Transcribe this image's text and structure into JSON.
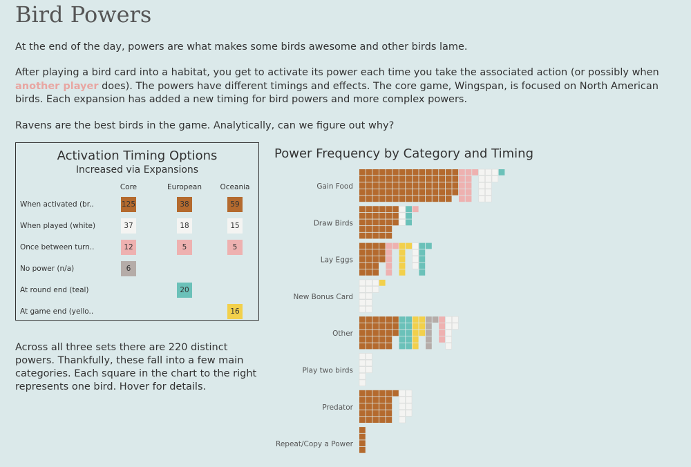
{
  "title": "Bird Powers",
  "intro": {
    "p1": "At the end of the day, powers are what makes some birds awesome and other birds lame.",
    "p2_before": "After playing a bird card into a habitat, you get to activate its power each time you take the associated action (or possibly when ",
    "p2_highlight": "another player",
    "p2_after": " does). The powers have different timings and effects. The core game, Wingspan, is focused on North American birds. Each expansion has added a new timing for bird powers and more complex powers.",
    "p3": "Ravens are the best birds in the game. Analytically, can we figure out why?"
  },
  "timing_table": {
    "title": "Activation Timing Options",
    "subtitle": "Increased via Expansions",
    "columns": [
      "Core",
      "European",
      "Oceania"
    ],
    "rows": [
      {
        "label": "When activated (br..",
        "color": "#b46a2e",
        "values": [
          "125",
          "38",
          "59"
        ]
      },
      {
        "label": "When played (white)",
        "color": "#f4f4f2",
        "values": [
          "37",
          "18",
          "15"
        ]
      },
      {
        "label": "Once between turn..",
        "color": "#eeb1b0",
        "values": [
          "12",
          "5",
          "5"
        ]
      },
      {
        "label": "No power (n/a)",
        "color": "#b5aca8",
        "values": [
          "6",
          "",
          ""
        ]
      },
      {
        "label": "At round end (teal)",
        "color": "#6bc1b9",
        "values": [
          "",
          "20",
          ""
        ]
      },
      {
        "label": "At game end (yello..",
        "color": "#f2d04b",
        "values": [
          "",
          "",
          "16"
        ]
      }
    ]
  },
  "summary": "Across all three sets there are 220 distinct powers. Thankfully, these fall into a few main categories. Each square in the chart to the right represents one bird. Hover for details.",
  "chart_data": {
    "type": "treemap-bar",
    "title": "Power Frequency by Category and Timing",
    "unit": "one square = one bird",
    "timings": {
      "brown": "When activated (brown)",
      "white": "When played (white)",
      "pink": "Once between turns (pink)",
      "grey": "No power (n/a)",
      "teal": "At round end (teal)",
      "yellow": "At game end (yellow)"
    },
    "colors": {
      "brown": "#b46a2e",
      "white": "#f4f4f2",
      "pink": "#eeb1b0",
      "grey": "#b5aca8",
      "teal": "#6bc1b9",
      "yellow": "#f2d04b"
    },
    "categories": [
      {
        "name": "Gain Food",
        "segments": [
          {
            "timing": "brown",
            "count": 74
          },
          {
            "timing": "pink",
            "count": 11
          },
          {
            "timing": "white",
            "count": 12
          },
          {
            "timing": "teal",
            "count": 1
          }
        ]
      },
      {
        "name": "Draw Birds",
        "segments": [
          {
            "timing": "brown",
            "count": 28
          },
          {
            "timing": "white",
            "count": 3
          },
          {
            "timing": "teal",
            "count": 3
          },
          {
            "timing": "pink",
            "count": 1
          }
        ]
      },
      {
        "name": "Lay Eggs",
        "segments": [
          {
            "timing": "brown",
            "count": 18
          },
          {
            "timing": "pink",
            "count": 6
          },
          {
            "timing": "yellow",
            "count": 6
          },
          {
            "timing": "white",
            "count": 4
          },
          {
            "timing": "teal",
            "count": 6
          }
        ]
      },
      {
        "name": "New Bonus Card",
        "segments": [
          {
            "timing": "white",
            "count": 12
          },
          {
            "timing": "yellow",
            "count": 1
          }
        ]
      },
      {
        "name": "Other",
        "segments": [
          {
            "timing": "brown",
            "count": 28
          },
          {
            "timing": "teal",
            "count": 10
          },
          {
            "timing": "yellow",
            "count": 8
          },
          {
            "timing": "grey",
            "count": 6
          },
          {
            "timing": "pink",
            "count": 4
          },
          {
            "timing": "white",
            "count": 7
          }
        ]
      },
      {
        "name": "Play two birds",
        "segments": [
          {
            "timing": "white",
            "count": 8
          }
        ]
      },
      {
        "name": "Predator",
        "segments": [
          {
            "timing": "brown",
            "count": 26
          },
          {
            "timing": "white",
            "count": 9
          }
        ]
      },
      {
        "name": "Repeat/Copy a Power",
        "segments": [
          {
            "timing": "brown",
            "count": 4
          }
        ]
      }
    ]
  }
}
